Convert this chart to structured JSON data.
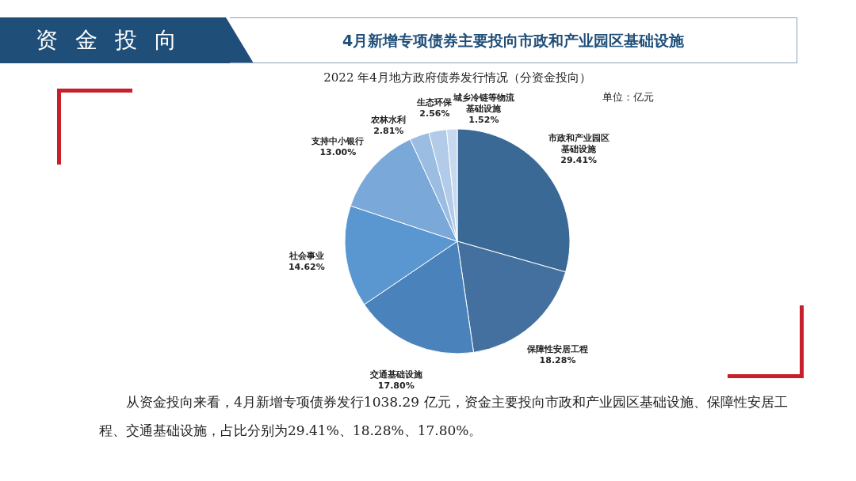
{
  "chart_data": {
    "type": "pie",
    "title": "2022 年4月地方政府债券发行情况（分资金投向）",
    "subtitle": "单位：亿元",
    "annotations": [
      "资金投向",
      "4月新增专项债券主要投向市政和产业园区基础设施",
      "从资金投向来看，4月新增专项债券发行1038.29 亿元，资金主要投向市政和产业园区基础设施、保障性安居工程、交通基础设施，占比分别为29.41%、18.28%、17.80%。"
    ],
    "categories": [
      "市政和产业园区基础设施",
      "保障性安居工程",
      "交通基础设施",
      "社会事业",
      "支持中小银行",
      "农林水利",
      "生态环保",
      "城乡冷链等物流基础设施"
    ],
    "values": [
      29.41,
      18.28,
      17.8,
      14.62,
      13.0,
      2.81,
      2.56,
      1.52
    ],
    "value_labels": [
      "29.41%",
      "18.28%",
      "17.80%",
      "14.62%",
      "13.00%",
      "2.81%",
      "2.56%",
      "1.52%"
    ],
    "colors": [
      "#3b6995",
      "#44709f",
      "#4a82bb",
      "#5a96cf",
      "#79a8d9",
      "#9bbde2",
      "#b2cbe8",
      "#c6d9ee"
    ]
  }
}
